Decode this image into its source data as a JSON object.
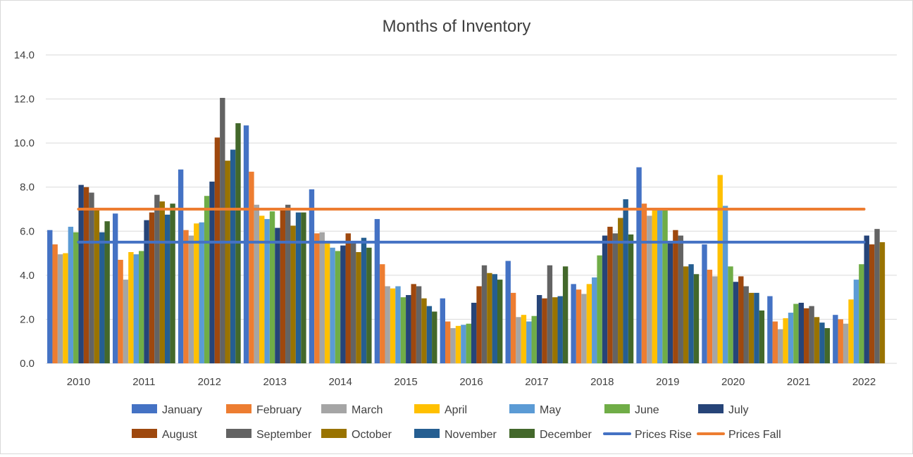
{
  "chart_data": {
    "type": "bar",
    "title": "Months of Inventory",
    "xlabel": "",
    "ylabel": "",
    "ylim": [
      0,
      14
    ],
    "yticks": [
      "0.0",
      "2.0",
      "4.0",
      "6.0",
      "8.0",
      "10.0",
      "12.0",
      "14.0"
    ],
    "grid": true,
    "legend_position": "bottom",
    "categories": [
      "2010",
      "2011",
      "2012",
      "2013",
      "2014",
      "2015",
      "2016",
      "2017",
      "2018",
      "2019",
      "2020",
      "2021",
      "2022"
    ],
    "series": [
      {
        "name": "January",
        "color": "#4472C4",
        "values": [
          6.05,
          6.8,
          8.8,
          10.8,
          7.9,
          6.55,
          2.95,
          4.65,
          3.6,
          8.9,
          5.4,
          3.05,
          2.2
        ]
      },
      {
        "name": "February",
        "color": "#ED7D31",
        "values": [
          5.4,
          4.7,
          6.05,
          8.7,
          5.9,
          4.5,
          1.9,
          3.2,
          3.35,
          7.25,
          4.25,
          1.9,
          2.0
        ]
      },
      {
        "name": "March",
        "color": "#A5A5A5",
        "values": [
          4.95,
          3.8,
          5.8,
          7.2,
          5.95,
          3.5,
          1.6,
          2.1,
          3.15,
          6.7,
          3.95,
          1.55,
          1.8
        ]
      },
      {
        "name": "April",
        "color": "#FFC000",
        "values": [
          5.0,
          5.05,
          6.35,
          6.7,
          5.5,
          3.4,
          1.7,
          2.2,
          3.6,
          7.0,
          8.55,
          2.05,
          2.9
        ]
      },
      {
        "name": "May",
        "color": "#5B9BD5",
        "values": [
          6.2,
          4.95,
          6.4,
          6.55,
          5.25,
          3.5,
          1.75,
          1.9,
          3.9,
          7.0,
          7.15,
          2.3,
          3.8
        ]
      },
      {
        "name": "June",
        "color": "#70AD47",
        "values": [
          5.95,
          5.1,
          7.6,
          6.9,
          5.1,
          3.0,
          1.8,
          2.15,
          4.9,
          6.95,
          4.4,
          2.7,
          4.5
        ]
      },
      {
        "name": "July",
        "color": "#264478",
        "values": [
          8.1,
          6.5,
          8.25,
          6.15,
          5.35,
          3.1,
          2.75,
          3.1,
          5.8,
          5.5,
          3.7,
          2.75,
          5.8
        ]
      },
      {
        "name": "August",
        "color": "#9E480E",
        "values": [
          8.0,
          6.85,
          10.25,
          7.0,
          5.9,
          3.6,
          3.5,
          2.95,
          6.2,
          6.05,
          3.95,
          2.5,
          5.4
        ]
      },
      {
        "name": "September",
        "color": "#636363",
        "values": [
          7.75,
          7.65,
          12.05,
          7.2,
          5.5,
          3.5,
          4.45,
          4.45,
          5.9,
          5.8,
          3.5,
          2.6,
          6.1
        ]
      },
      {
        "name": "October",
        "color": "#997300",
        "values": [
          7.0,
          7.35,
          9.2,
          6.25,
          5.05,
          2.95,
          4.1,
          3.0,
          6.6,
          4.4,
          3.2,
          2.1,
          5.5
        ]
      },
      {
        "name": "November",
        "color": "#255E91",
        "values": [
          5.95,
          6.75,
          9.7,
          6.85,
          5.7,
          2.6,
          4.05,
          3.05,
          7.45,
          4.5,
          3.2,
          1.85,
          null
        ]
      },
      {
        "name": "December",
        "color": "#43682B",
        "values": [
          6.45,
          7.25,
          10.9,
          6.85,
          5.25,
          2.35,
          3.8,
          4.4,
          5.85,
          4.05,
          2.4,
          1.6,
          null
        ]
      }
    ],
    "reference_lines": [
      {
        "name": "Prices Rise",
        "color": "#4472C4",
        "value": 5.5
      },
      {
        "name": "Prices Fall",
        "color": "#ED7D31",
        "value": 7.0
      }
    ]
  }
}
